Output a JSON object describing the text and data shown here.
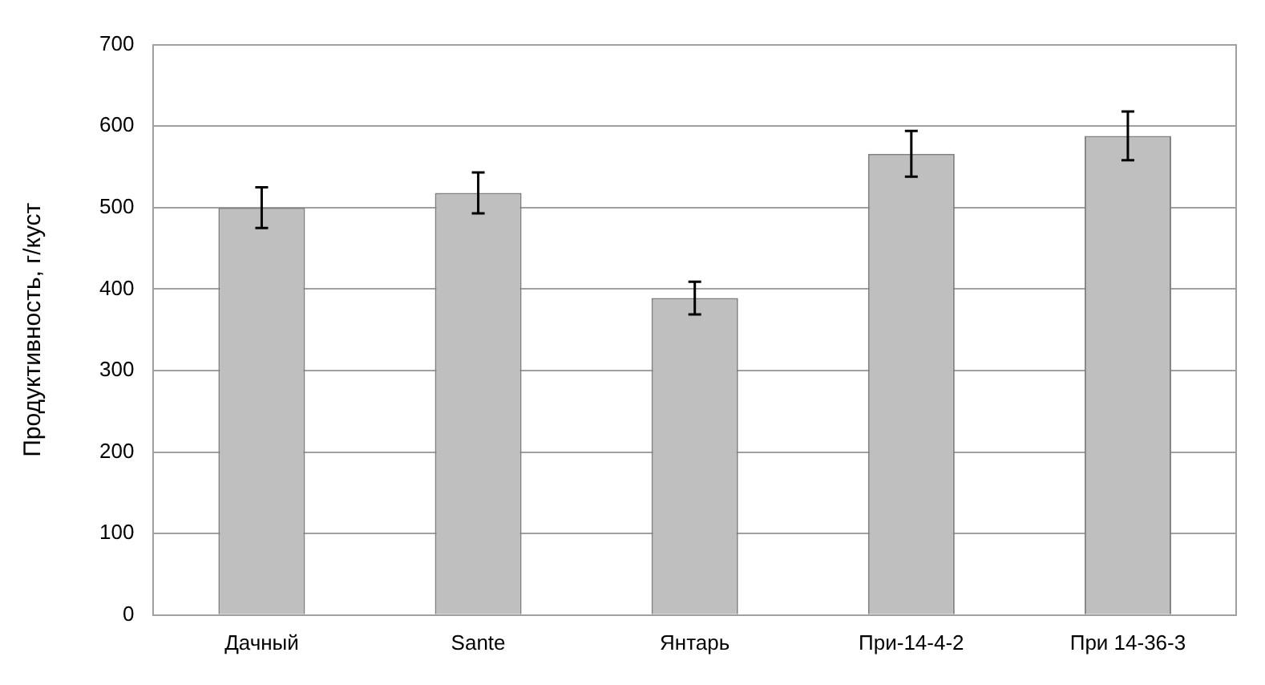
{
  "chart_data": {
    "type": "bar",
    "ylabel": "Продуктивность, г/куст",
    "categories": [
      "Дачный",
      "Sante",
      "Янтарь",
      "При-14-4-2",
      "При 14-36-3"
    ],
    "values": [
      500,
      518,
      389,
      566,
      588
    ],
    "errors": [
      25,
      25,
      20,
      28,
      30
    ],
    "color": "#bfbfbf",
    "ylim": [
      0,
      700
    ],
    "yticks": [
      0,
      100,
      200,
      300,
      400,
      500,
      600,
      700
    ],
    "grid": "y"
  }
}
